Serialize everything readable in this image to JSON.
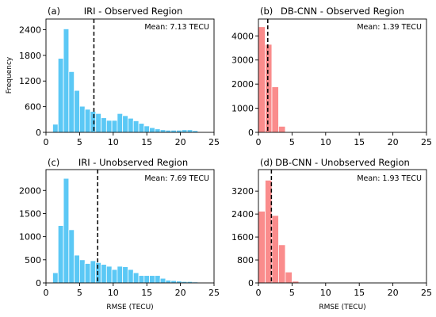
{
  "chart_data": [
    {
      "type": "bar",
      "tag": "(a)",
      "title": "IRI - Observed Region",
      "color": "#5bc8f5",
      "xlabel": "",
      "ylabel": "Frequency",
      "xlim": [
        0,
        25
      ],
      "ylim": [
        0,
        2650
      ],
      "xticks": [
        0,
        5,
        10,
        15,
        20,
        25
      ],
      "yticks": [
        0,
        600,
        1200,
        1800,
        2400
      ],
      "bin_start": 1,
      "bin_width": 0.8,
      "values": [
        190,
        1730,
        2420,
        1420,
        980,
        610,
        540,
        490,
        440,
        340,
        280,
        280,
        440,
        390,
        330,
        270,
        210,
        150,
        110,
        80,
        60,
        50,
        50,
        50,
        60,
        60,
        40
      ],
      "mean": 7.13,
      "mean_label": "Mean: 7.13 TECU"
    },
    {
      "type": "bar",
      "tag": "(b)",
      "title": "DB-CNN - Observed Region",
      "color": "#fa8c8c",
      "xlabel": "",
      "ylabel": "",
      "xlim": [
        0,
        25
      ],
      "ylim": [
        0,
        4700
      ],
      "xticks": [
        0,
        5,
        10,
        15,
        20,
        25
      ],
      "yticks": [
        0,
        1000,
        2000,
        3000,
        4000
      ],
      "bin_start": 0,
      "bin_width": 1,
      "values": [
        4380,
        3650,
        1890,
        250,
        20,
        5
      ],
      "mean": 1.39,
      "mean_label": "Mean: 1.39 TECU"
    },
    {
      "type": "bar",
      "tag": "(c)",
      "title": "IRI - Unobserved Region",
      "color": "#5bc8f5",
      "xlabel": "RMSE (TECU)",
      "ylabel": "",
      "xlim": [
        0,
        25
      ],
      "ylim": [
        0,
        2450
      ],
      "xticks": [
        0,
        5,
        10,
        15,
        20,
        25
      ],
      "yticks": [
        0,
        500,
        1000,
        1500,
        2000
      ],
      "bin_start": 1,
      "bin_width": 0.8,
      "values": [
        220,
        1240,
        2260,
        1150,
        600,
        500,
        420,
        480,
        440,
        400,
        360,
        290,
        360,
        350,
        290,
        220,
        160,
        160,
        160,
        160,
        100,
        60,
        50,
        40,
        30,
        30,
        20
      ],
      "mean": 7.69,
      "mean_label": "Mean: 7.69 TECU"
    },
    {
      "type": "bar",
      "tag": "(d)",
      "title": "DB-CNN - Unobserved Region",
      "color": "#fa8c8c",
      "xlabel": "RMSE (TECU)",
      "ylabel": "",
      "xlim": [
        0,
        25
      ],
      "ylim": [
        0,
        3950
      ],
      "xticks": [
        0,
        5,
        10,
        15,
        20,
        25
      ],
      "yticks": [
        0,
        800,
        1600,
        2400,
        3200
      ],
      "bin_start": 0,
      "bin_width": 1,
      "values": [
        2500,
        3580,
        2350,
        1330,
        380,
        60,
        10
      ],
      "mean": 1.93,
      "mean_label": "Mean: 1.93 TECU"
    }
  ]
}
